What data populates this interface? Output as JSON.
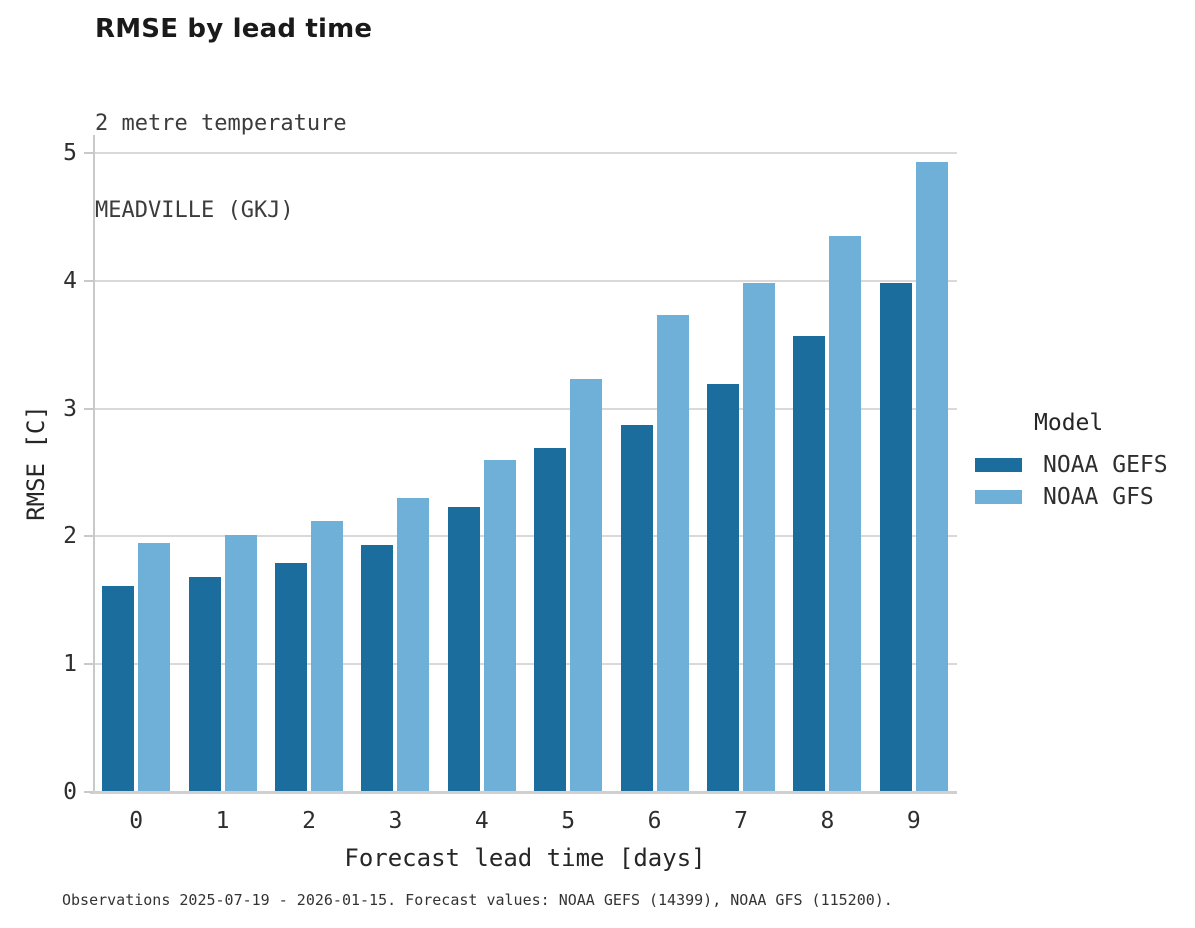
{
  "title": "RMSE by lead time",
  "subtitle_line1": "2 metre temperature",
  "subtitle_line2": "MEADVILLE (GKJ)",
  "caption": "Observations 2025-07-19 - 2026-01-15. Forecast values: NOAA GEFS (14399), NOAA GFS (115200).",
  "axes": {
    "y_label": "RMSE [C]",
    "x_label": "Forecast lead time [days]",
    "y_ticks": [
      "0",
      "1",
      "2",
      "3",
      "4",
      "5"
    ],
    "x_ticks": [
      "0",
      "1",
      "2",
      "3",
      "4",
      "5",
      "6",
      "7",
      "8",
      "9"
    ]
  },
  "legend": {
    "title": "Model"
  },
  "colors": {
    "gefs": "#1b6d9d",
    "gfs": "#6fb0d8",
    "gridline": "#d9d9d9",
    "spine": "#c9c9c9"
  },
  "chart_data": {
    "type": "bar",
    "title": "RMSE by lead time",
    "subtitle": [
      "2 metre temperature",
      "MEADVILLE (GKJ)"
    ],
    "xlabel": "Forecast lead time [days]",
    "ylabel": "RMSE [C]",
    "categories": [
      0,
      1,
      2,
      3,
      4,
      5,
      6,
      7,
      8,
      9
    ],
    "series": [
      {
        "name": "NOAA GEFS",
        "color": "#1b6d9d",
        "values": [
          1.61,
          1.68,
          1.79,
          1.93,
          2.23,
          2.69,
          2.87,
          3.19,
          3.57,
          3.98
        ]
      },
      {
        "name": "NOAA GFS",
        "color": "#6fb0d8",
        "values": [
          1.95,
          2.01,
          2.12,
          2.3,
          2.6,
          3.23,
          3.73,
          3.98,
          4.35,
          4.93
        ]
      }
    ],
    "ylim": [
      0,
      5.14
    ],
    "y_tick_step": 1,
    "grid": "horizontal",
    "legend_title": "Model",
    "legend_position": "right",
    "caption": "Observations 2025-07-19 - 2026-01-15. Forecast values: NOAA GEFS (14399), NOAA GFS (115200)."
  }
}
